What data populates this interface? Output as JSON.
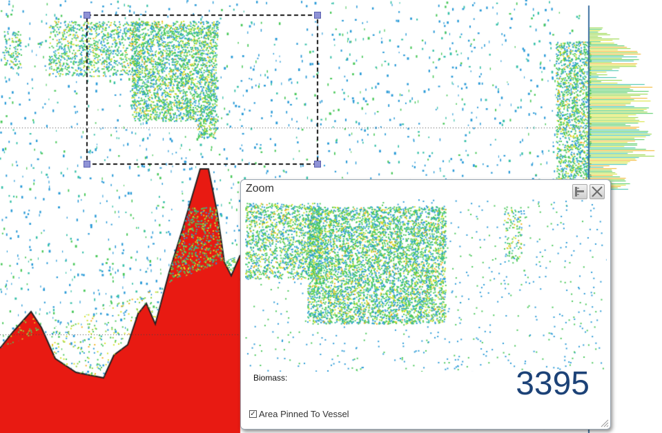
{
  "echogram": {
    "palette": [
      "#1f6fd0",
      "#2a9bd8",
      "#35c0a8",
      "#49c95a",
      "#8fd43a",
      "#d4e22a",
      "#f2b11e",
      "#ef6a12",
      "#e81a12"
    ],
    "background": "#ffffff",
    "seabed_color": "#e81a12"
  },
  "selection": {
    "border_style": "dashed",
    "border_color": "#111111",
    "handle_color": "#8f93d6"
  },
  "zoom": {
    "title": "Zoom",
    "pin_icon": "pin-icon",
    "close_icon": "close-icon",
    "biomass_label": "Biomass:",
    "biomass_value": "3395",
    "pinned_label": "Area Pinned To Vessel",
    "pinned_checked": true,
    "value_color": "#1c4277"
  }
}
